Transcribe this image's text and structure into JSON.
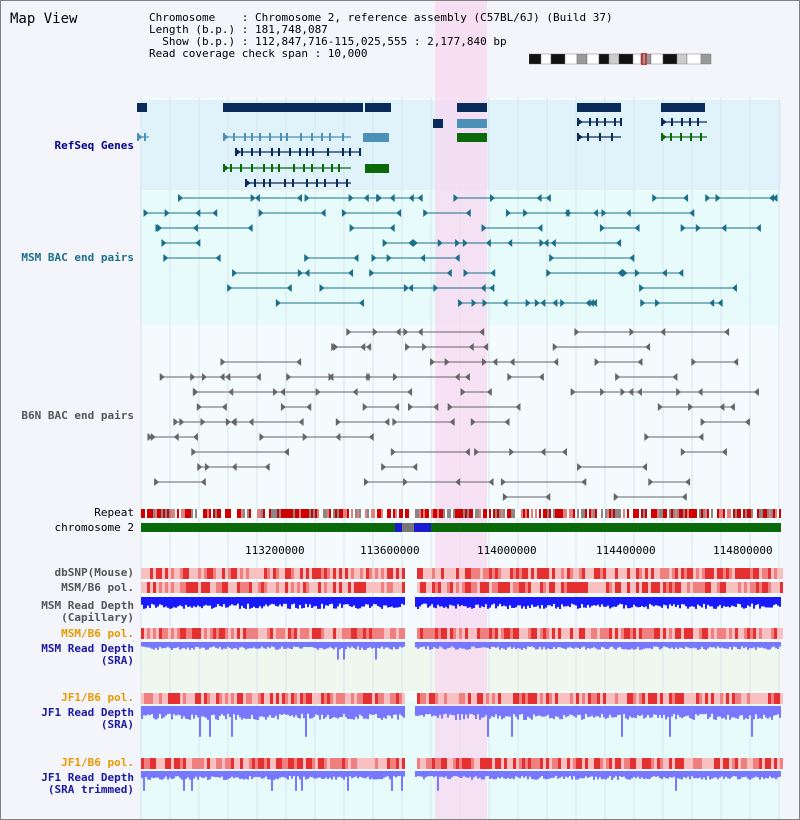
{
  "title": "Map View",
  "info": {
    "line1": "Chromosome    : Chromosome 2, reference assembly (C57BL/6J) (Build 37)",
    "line2": "Length (b.p.) : 181,748,087",
    "line3": "  Show (b.p.) : 112,847,716-115,025,555 : 2,177,840 bp",
    "line4": "Read coverage check span : 10,000"
  },
  "track_labels": {
    "refseq": "RefSeq Genes",
    "msm_bac": "MSM BAC end pairs",
    "b6n_bac": "B6N BAC end pairs",
    "repeat": "Repeat",
    "chromosome": "chromosome 2",
    "dbsnp": "dbSNP(Mouse)",
    "msm_b6_pol_1": "MSM/B6 pol.",
    "msm_read_depth_cap": "MSM Read Depth\n(Capillary)",
    "msm_b6_pol_2": "MSM/B6 pol.",
    "msm_read_depth_sra": "MSM Read Depth\n(SRA)",
    "jf1_b6_pol_1": "JF1/B6 pol.",
    "jf1_read_depth_sra": "JF1 Read Depth\n(SRA)",
    "jf1_b6_pol_2": "JF1/B6 pol.",
    "jf1_read_depth_trimmed": "JF1 Read Depth\n(SRA trimmed)"
  },
  "axis_ticks": [
    "113200000",
    "113600000",
    "114000000",
    "114400000",
    "114800000"
  ],
  "colors": {
    "refseq_bg": "#e0f3fb",
    "bac_bg": "#e8fbfb",
    "highlight": "#f8d8f0",
    "gene_dark": "#0a2a5a",
    "gene_mid": "#4a90b8",
    "gene_green": "#0a6a0a",
    "msm_pair": "#1b6f8a",
    "b6n_pair": "#666666",
    "chromosome": "#0a6a0a",
    "depth_blue": "#1a1aff",
    "depth_light": "#7777ff"
  }
}
